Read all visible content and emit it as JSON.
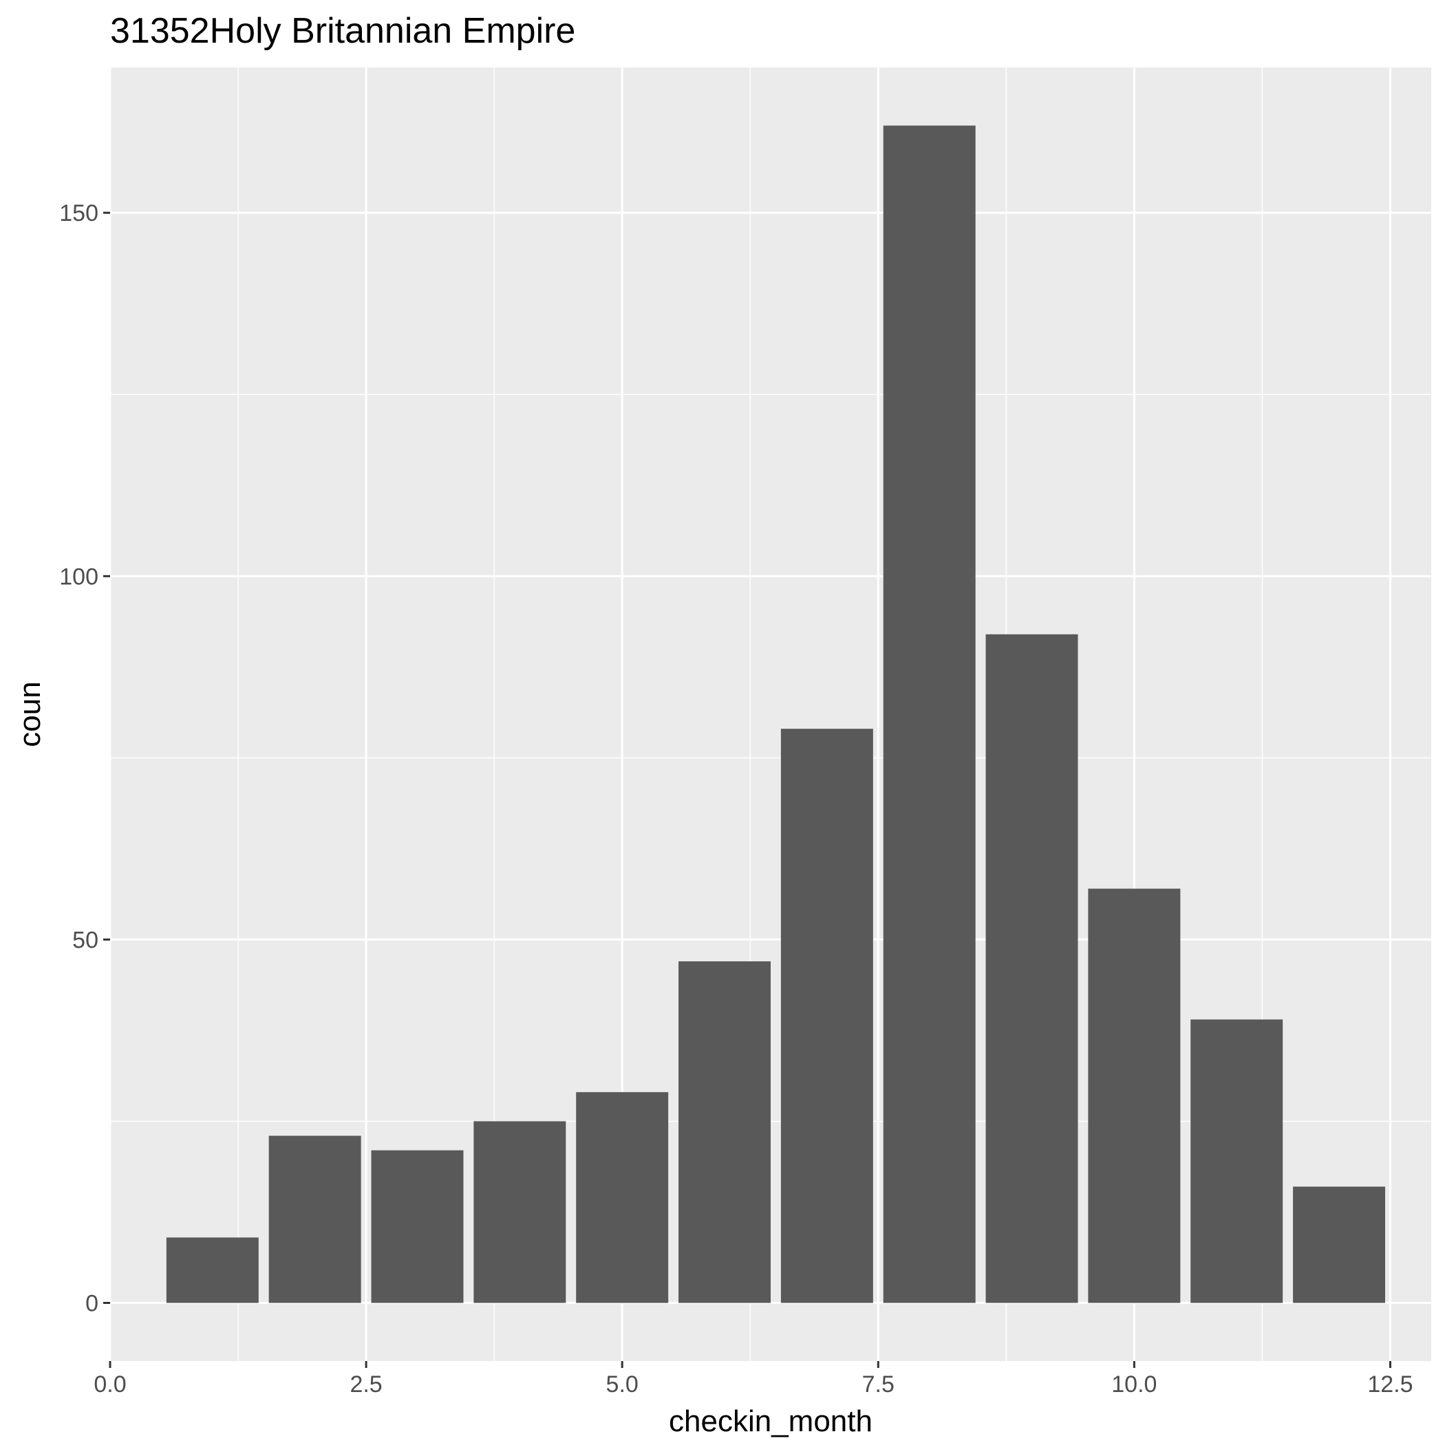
{
  "chart_data": {
    "type": "bar",
    "title": "31352Holy Britannian Empire",
    "xlabel": "checkin_month",
    "ylabel": "coun",
    "x": [
      1,
      2,
      3,
      4,
      5,
      6,
      7,
      8,
      9,
      10,
      11,
      12
    ],
    "values": [
      9,
      23,
      21,
      25,
      29,
      47,
      79,
      162,
      92,
      57,
      39,
      16
    ],
    "xlim": [
      0,
      12.9
    ],
    "ylim": [
      -8,
      170
    ],
    "x_ticks": [
      {
        "value": 0,
        "label": "0.0"
      },
      {
        "value": 2.5,
        "label": "2.5"
      },
      {
        "value": 5,
        "label": "5.0"
      },
      {
        "value": 7.5,
        "label": "7.5"
      },
      {
        "value": 10,
        "label": "10.0"
      },
      {
        "value": 12.5,
        "label": "12.5"
      }
    ],
    "y_ticks": [
      {
        "value": 0,
        "label": "0"
      },
      {
        "value": 50,
        "label": "50"
      },
      {
        "value": 100,
        "label": "100"
      },
      {
        "value": 150,
        "label": "150"
      }
    ],
    "bar_width": 0.9,
    "grid": true,
    "legend": "none",
    "colors": {
      "panel_background": "#ebebeb",
      "grid_line": "#ffffff",
      "bar_fill": "#595959",
      "tick_mark": "#333333",
      "tick_label": "#4d4d4d"
    }
  }
}
